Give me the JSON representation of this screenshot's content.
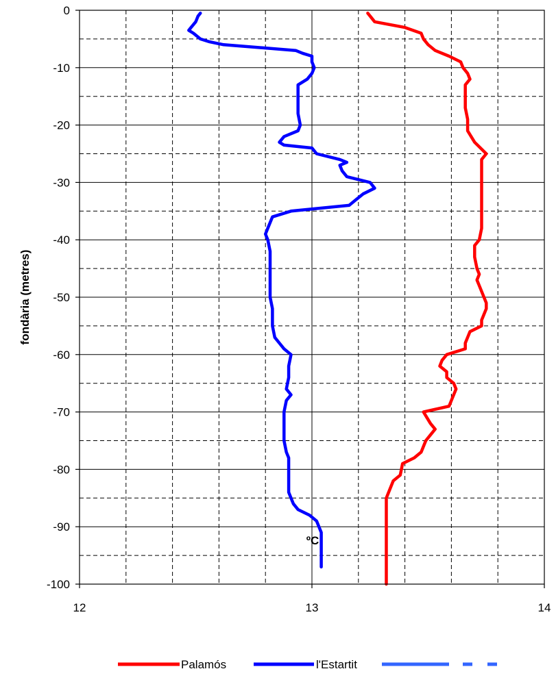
{
  "chart_data": {
    "type": "line",
    "title": "",
    "xlabel": "ºC",
    "ylabel": "fondària (metres)",
    "xlim": [
      12,
      14
    ],
    "ylim": [
      -100,
      0
    ],
    "x_ticks": [
      12,
      13,
      14
    ],
    "y_ticks": [
      0,
      -10,
      -20,
      -30,
      -40,
      -50,
      -60,
      -70,
      -80,
      -90,
      -100
    ],
    "grid": {
      "major": "solid",
      "minor": "dashed",
      "x_minor_step": 0.2,
      "y_minor_step": 5
    },
    "legend_position": "bottom",
    "series": [
      {
        "name": "Palamós",
        "color": "#ff0000",
        "style": "solid",
        "points": [
          [
            13.24,
            -0.5
          ],
          [
            13.25,
            -1
          ],
          [
            13.27,
            -2
          ],
          [
            13.4,
            -3
          ],
          [
            13.47,
            -4
          ],
          [
            13.48,
            -5
          ],
          [
            13.5,
            -6
          ],
          [
            13.53,
            -7
          ],
          [
            13.59,
            -8
          ],
          [
            13.64,
            -9
          ],
          [
            13.65,
            -10
          ],
          [
            13.67,
            -11
          ],
          [
            13.68,
            -12
          ],
          [
            13.66,
            -13
          ],
          [
            13.66,
            -15
          ],
          [
            13.66,
            -17
          ],
          [
            13.67,
            -19
          ],
          [
            13.67,
            -21
          ],
          [
            13.7,
            -23
          ],
          [
            13.75,
            -25
          ],
          [
            13.73,
            -26
          ],
          [
            13.73,
            -28
          ],
          [
            13.73,
            -30
          ],
          [
            13.73,
            -32
          ],
          [
            13.73,
            -34
          ],
          [
            13.73,
            -36
          ],
          [
            13.73,
            -38
          ],
          [
            13.72,
            -40
          ],
          [
            13.7,
            -41
          ],
          [
            13.7,
            -43
          ],
          [
            13.71,
            -45
          ],
          [
            13.72,
            -46
          ],
          [
            13.71,
            -47
          ],
          [
            13.72,
            -48
          ],
          [
            13.75,
            -51
          ],
          [
            13.75,
            -52
          ],
          [
            13.73,
            -54
          ],
          [
            13.73,
            -55
          ],
          [
            13.68,
            -56
          ],
          [
            13.66,
            -58
          ],
          [
            13.66,
            -59
          ],
          [
            13.58,
            -60
          ],
          [
            13.56,
            -61
          ],
          [
            13.55,
            -62
          ],
          [
            13.58,
            -63
          ],
          [
            13.58,
            -64
          ],
          [
            13.61,
            -65
          ],
          [
            13.62,
            -66
          ],
          [
            13.6,
            -68
          ],
          [
            13.59,
            -69
          ],
          [
            13.48,
            -70
          ],
          [
            13.51,
            -72
          ],
          [
            13.53,
            -73
          ],
          [
            13.49,
            -75
          ],
          [
            13.47,
            -77
          ],
          [
            13.44,
            -78
          ],
          [
            13.39,
            -79
          ],
          [
            13.38,
            -81
          ],
          [
            13.35,
            -82
          ],
          [
            13.33,
            -84
          ],
          [
            13.32,
            -85
          ],
          [
            13.32,
            -90
          ],
          [
            13.32,
            -95
          ],
          [
            13.32,
            -100
          ]
        ]
      },
      {
        "name": "l'Estartit",
        "color": "#0000ff",
        "style": "solid",
        "points": [
          [
            12.52,
            -0.5
          ],
          [
            12.51,
            -1
          ],
          [
            12.5,
            -2
          ],
          [
            12.48,
            -3
          ],
          [
            12.47,
            -3.5
          ],
          [
            12.49,
            -4
          ],
          [
            12.52,
            -5
          ],
          [
            12.56,
            -5.5
          ],
          [
            12.62,
            -6
          ],
          [
            12.93,
            -7
          ],
          [
            12.96,
            -7.5
          ],
          [
            13.0,
            -8
          ],
          [
            13.0,
            -9
          ],
          [
            13.01,
            -10
          ],
          [
            13.0,
            -11
          ],
          [
            12.98,
            -12
          ],
          [
            12.94,
            -13
          ],
          [
            12.94,
            -14
          ],
          [
            12.94,
            -16
          ],
          [
            12.94,
            -18
          ],
          [
            12.95,
            -20
          ],
          [
            12.94,
            -21
          ],
          [
            12.88,
            -22
          ],
          [
            12.86,
            -23
          ],
          [
            12.88,
            -23.5
          ],
          [
            13.0,
            -24
          ],
          [
            13.02,
            -25
          ],
          [
            13.12,
            -26
          ],
          [
            13.15,
            -26.5
          ],
          [
            13.12,
            -27
          ],
          [
            13.13,
            -28
          ],
          [
            13.15,
            -29
          ],
          [
            13.25,
            -30
          ],
          [
            13.27,
            -31
          ],
          [
            13.22,
            -32
          ],
          [
            13.19,
            -33
          ],
          [
            13.16,
            -34
          ],
          [
            12.91,
            -35
          ],
          [
            12.83,
            -36
          ],
          [
            12.81,
            -38
          ],
          [
            12.8,
            -39
          ],
          [
            12.81,
            -40
          ],
          [
            12.82,
            -42
          ],
          [
            12.82,
            -45
          ],
          [
            12.82,
            -48
          ],
          [
            12.82,
            -50
          ],
          [
            12.83,
            -52
          ],
          [
            12.83,
            -55
          ],
          [
            12.84,
            -57
          ],
          [
            12.86,
            -58
          ],
          [
            12.88,
            -59
          ],
          [
            12.91,
            -60
          ],
          [
            12.9,
            -62
          ],
          [
            12.9,
            -64
          ],
          [
            12.89,
            -66
          ],
          [
            12.91,
            -67
          ],
          [
            12.89,
            -68
          ],
          [
            12.88,
            -70
          ],
          [
            12.88,
            -72
          ],
          [
            12.88,
            -75
          ],
          [
            12.89,
            -77
          ],
          [
            12.9,
            -78
          ],
          [
            12.9,
            -80
          ],
          [
            12.9,
            -82
          ],
          [
            12.9,
            -84
          ],
          [
            12.92,
            -86
          ],
          [
            12.94,
            -87
          ],
          [
            12.99,
            -88
          ],
          [
            13.02,
            -89
          ],
          [
            13.03,
            -90
          ],
          [
            13.04,
            -91
          ],
          [
            13.04,
            -93
          ],
          [
            13.04,
            -95
          ],
          [
            13.04,
            -97
          ]
        ]
      },
      {
        "name": "",
        "color": "#3366ff",
        "style": "dashed",
        "points": []
      }
    ]
  }
}
